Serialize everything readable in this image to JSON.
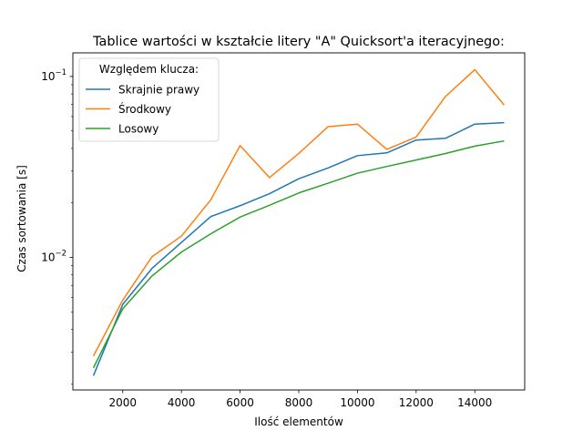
{
  "chart_data": {
    "type": "line",
    "title": "Tablice wartości w kształcie litery \"A\" Quicksort'a iteracyjnego:",
    "xlabel": "Ilość elementów",
    "ylabel": "Czas sortowania [s]",
    "xlim": [
      300,
      15700
    ],
    "ylim": [
      0.00185,
      0.135
    ],
    "yscale": "log",
    "grid": false,
    "x_ticks": [
      2000,
      4000,
      6000,
      8000,
      10000,
      12000,
      14000
    ],
    "x_tick_labels": [
      "2000",
      "4000",
      "6000",
      "8000",
      "10000",
      "12000",
      "14000"
    ],
    "y_ticks": [
      0.01,
      0.1
    ],
    "y_tick_labels_mantissa": [
      "10",
      "10"
    ],
    "y_tick_labels_exponent": [
      "−2",
      "−1"
    ],
    "legend": {
      "title": "Względem klucza:",
      "position": "top-left"
    },
    "x": [
      1000,
      2000,
      3000,
      4000,
      5000,
      6000,
      7000,
      8000,
      9000,
      10000,
      11000,
      12000,
      13000,
      14000,
      15000
    ],
    "series": [
      {
        "name": "Skrajnie prawy",
        "color": "#1f77b4",
        "values": [
          0.00222,
          0.0055,
          0.0087,
          0.0121,
          0.0168,
          0.0193,
          0.0225,
          0.0272,
          0.0312,
          0.0365,
          0.0378,
          0.0445,
          0.0455,
          0.0545,
          0.0555
        ]
      },
      {
        "name": "Środkowy",
        "color": "#ff7f0e",
        "values": [
          0.00285,
          0.0058,
          0.0101,
          0.0131,
          0.0208,
          0.0415,
          0.0276,
          0.0375,
          0.0528,
          0.0545,
          0.0395,
          0.0462,
          0.0775,
          0.109,
          0.0695
        ]
      },
      {
        "name": "Losowy",
        "color": "#2ca02c",
        "values": [
          0.00245,
          0.0052,
          0.0079,
          0.0107,
          0.0135,
          0.0167,
          0.0194,
          0.0227,
          0.0257,
          0.0292,
          0.0318,
          0.0345,
          0.0375,
          0.0412,
          0.044
        ]
      }
    ]
  }
}
